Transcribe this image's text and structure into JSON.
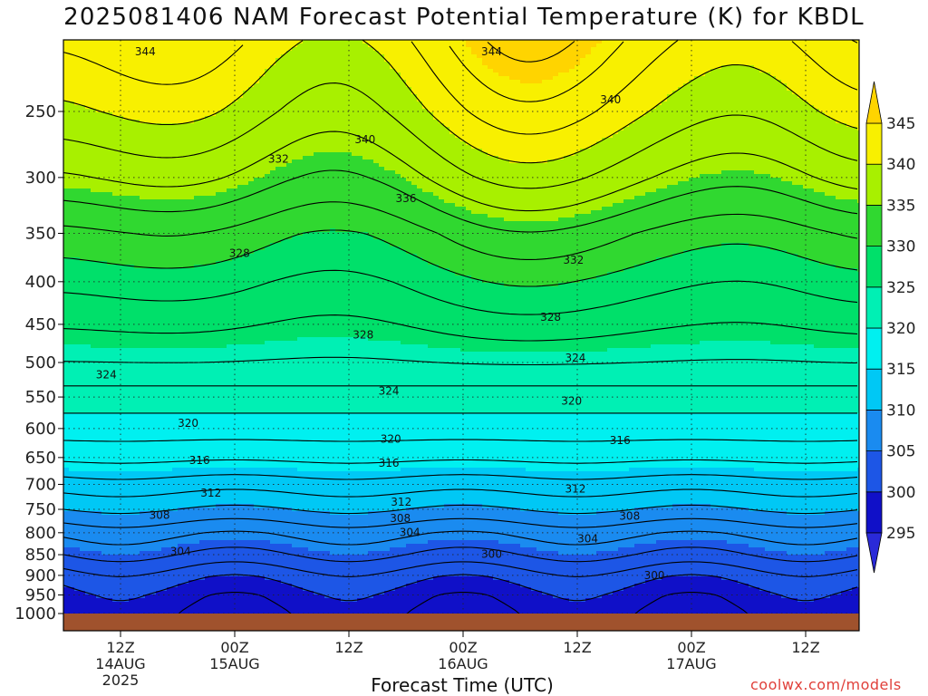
{
  "chart_data": {
    "type": "heatmap",
    "title": "2025081406 NAM Forecast Potential Temperature (K) for KBDL",
    "xlabel": "Forecast Time (UTC)",
    "ylabel": "",
    "x_ticks": [
      {
        "hour": 0,
        "lines": [
          "12Z",
          "14AUG",
          "2025"
        ]
      },
      {
        "hour": 12,
        "lines": [
          "00Z",
          "15AUG"
        ]
      },
      {
        "hour": 24,
        "lines": [
          "12Z"
        ]
      },
      {
        "hour": 36,
        "lines": [
          "00Z",
          "16AUG"
        ]
      },
      {
        "hour": 48,
        "lines": [
          "12Z"
        ]
      },
      {
        "hour": 60,
        "lines": [
          "00Z",
          "17AUG"
        ]
      },
      {
        "hour": 72,
        "lines": [
          "12Z"
        ]
      }
    ],
    "y_ticks": [
      "250",
      "300",
      "350",
      "400",
      "450",
      "500",
      "550",
      "600",
      "650",
      "700",
      "750",
      "800",
      "850",
      "900",
      "950",
      "1000"
    ],
    "colorbar": {
      "levels": [
        "295",
        "300",
        "305",
        "310",
        "315",
        "320",
        "325",
        "330",
        "335",
        "340",
        "345"
      ],
      "colors": [
        "#2a2ad8",
        "#1010c8",
        "#1d56e6",
        "#1a8bf0",
        "#00c8f5",
        "#00f0f0",
        "#00f0b4",
        "#00e06a",
        "#30d830",
        "#a8f000",
        "#f8f000",
        "#ffd400"
      ]
    },
    "contour_labels": [
      {
        "value": "344",
        "hour": 2.6,
        "p": 212
      },
      {
        "value": "344",
        "hour": 39,
        "p": 212
      },
      {
        "value": "340",
        "hour": 25.7,
        "p": 270
      },
      {
        "value": "340",
        "hour": 51.5,
        "p": 242
      },
      {
        "value": "336",
        "hour": 30,
        "p": 318
      },
      {
        "value": "332",
        "hour": 16.6,
        "p": 285
      },
      {
        "value": "332",
        "hour": 47.6,
        "p": 377
      },
      {
        "value": "328",
        "hour": 12.5,
        "p": 370
      },
      {
        "value": "328",
        "hour": 25.5,
        "p": 463
      },
      {
        "value": "328",
        "hour": 45.2,
        "p": 441
      },
      {
        "value": "324",
        "hour": -1.5,
        "p": 517
      },
      {
        "value": "324",
        "hour": 28.2,
        "p": 541
      },
      {
        "value": "324",
        "hour": 47.8,
        "p": 494
      },
      {
        "value": "320",
        "hour": 7.1,
        "p": 591
      },
      {
        "value": "320",
        "hour": 28.4,
        "p": 618
      },
      {
        "value": "320",
        "hour": 47.4,
        "p": 556
      },
      {
        "value": "316",
        "hour": 8.3,
        "p": 655
      },
      {
        "value": "316",
        "hour": 28.2,
        "p": 660
      },
      {
        "value": "316",
        "hour": 52.5,
        "p": 620
      },
      {
        "value": "312",
        "hour": 9.5,
        "p": 717
      },
      {
        "value": "312",
        "hour": 29.5,
        "p": 735
      },
      {
        "value": "312",
        "hour": 47.8,
        "p": 709
      },
      {
        "value": "308",
        "hour": 4.1,
        "p": 762
      },
      {
        "value": "308",
        "hour": 29.4,
        "p": 769
      },
      {
        "value": "308",
        "hour": 53.5,
        "p": 764
      },
      {
        "value": "304",
        "hour": 6.3,
        "p": 842
      },
      {
        "value": "304",
        "hour": 30.4,
        "p": 799
      },
      {
        "value": "304",
        "hour": 49.1,
        "p": 813
      },
      {
        "value": "300",
        "hour": 39,
        "p": 849
      },
      {
        "value": "300",
        "hour": 56.1,
        "p": 900
      }
    ]
  },
  "credit": "coolwx.com/models"
}
